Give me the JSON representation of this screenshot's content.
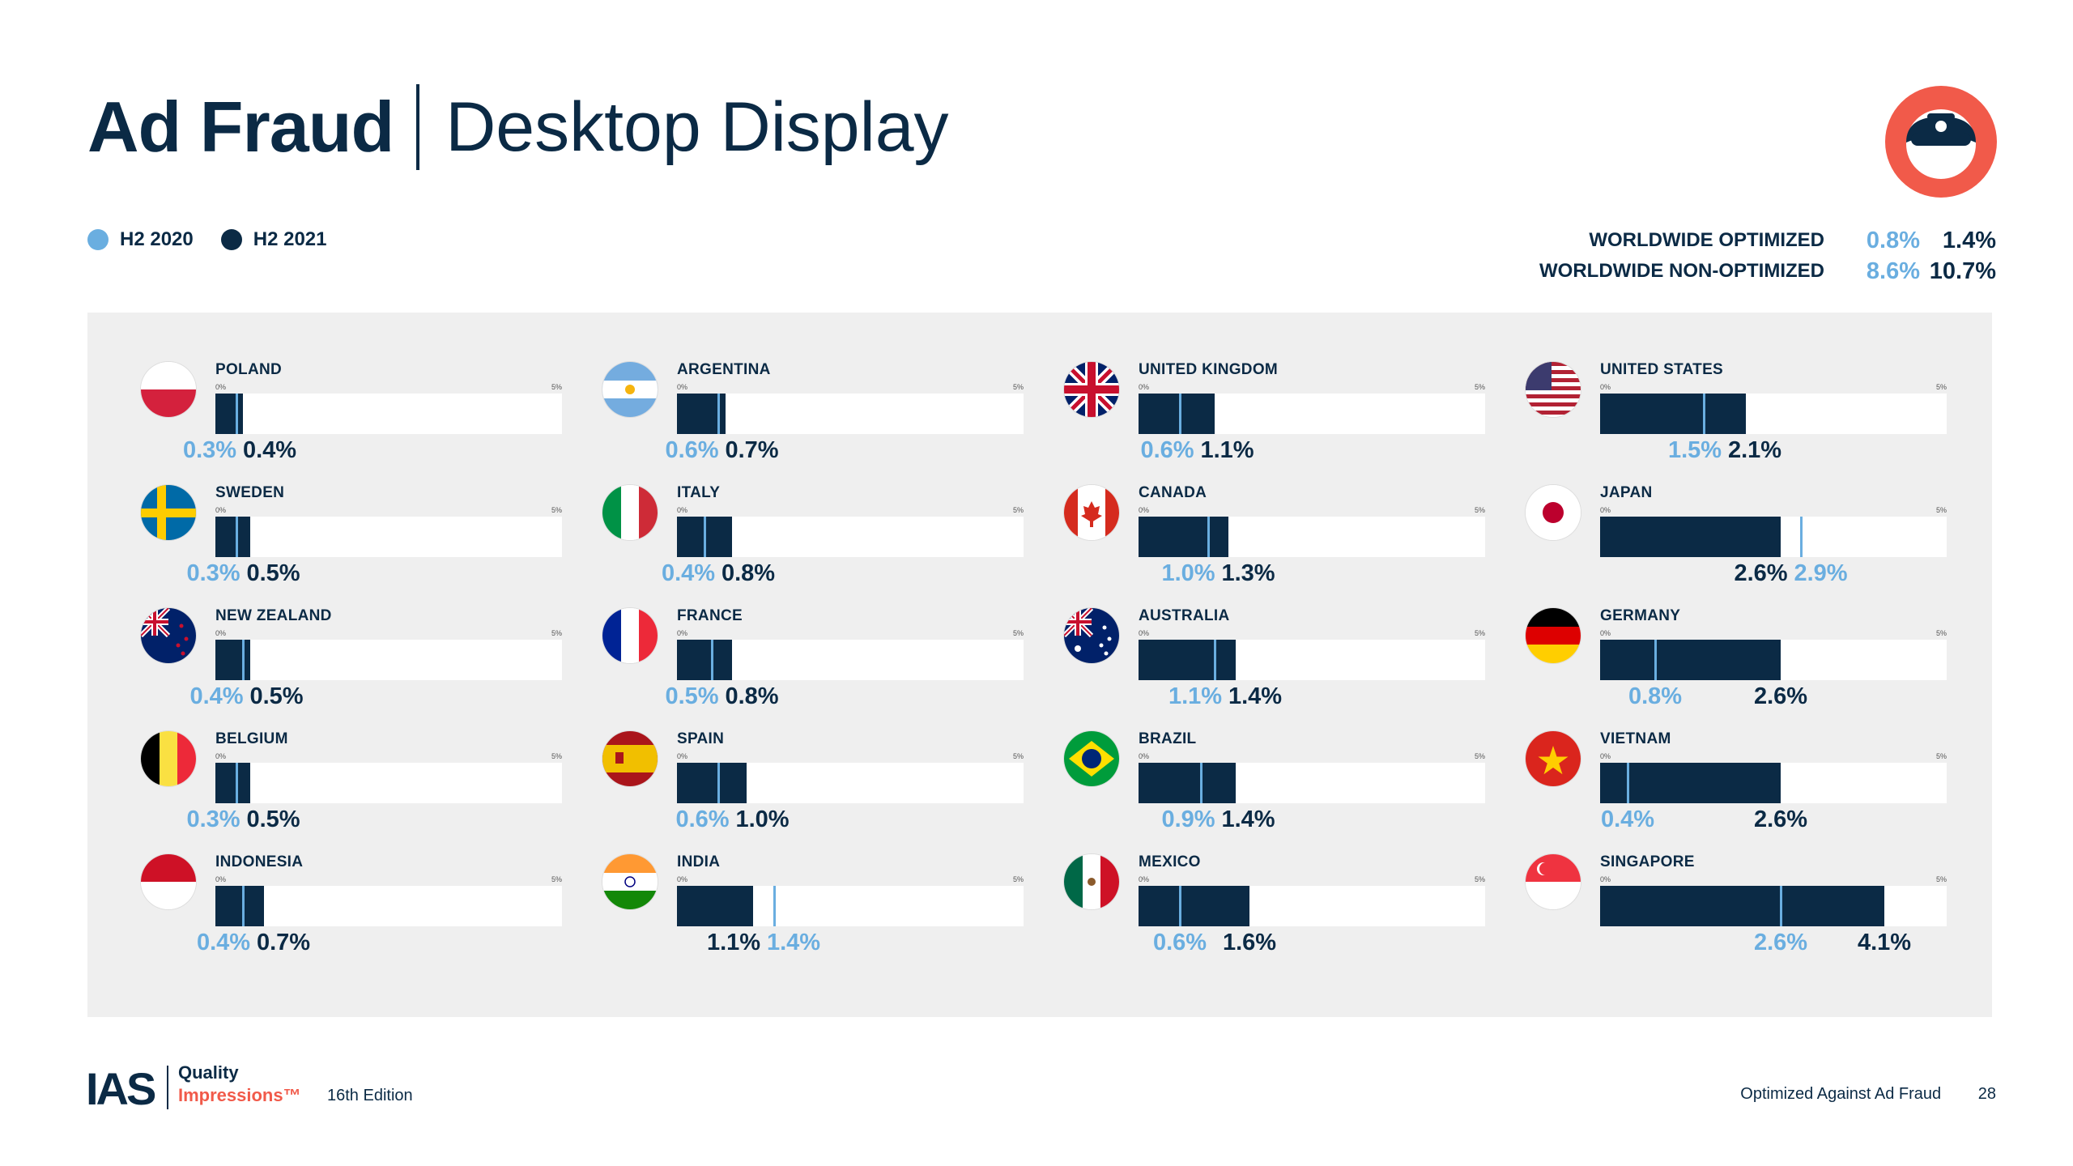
{
  "header": {
    "title_bold": "Ad Fraud",
    "title_light": "Desktop Display"
  },
  "colors": {
    "navy": "#0b2a45",
    "h2_2020": "#6aaee0",
    "h2_2021": "#0b2a45",
    "accent": "#f15a4a",
    "panel": "#efefef"
  },
  "logo_icon": "ninja-mascot-icon",
  "legend": {
    "items": [
      {
        "label": "H2 2020",
        "color": "#6aaee0"
      },
      {
        "label": "H2 2021",
        "color": "#0b2a45"
      }
    ]
  },
  "worldwide": {
    "optimized": {
      "label": "WORLDWIDE OPTIMIZED",
      "h2_2020": "0.8%",
      "h2_2021": "1.4%"
    },
    "non_optimized": {
      "label": "WORLDWIDE NON-OPTIMIZED",
      "h2_2020": "8.6%",
      "h2_2021": "10.7%"
    }
  },
  "chart_data": {
    "type": "bar",
    "title": "Ad Fraud | Desktop Display",
    "xlim": [
      0,
      5
    ],
    "tick_labels": [
      "0%",
      "5%"
    ],
    "series": [
      {
        "name": "H2 2020",
        "role": "marker"
      },
      {
        "name": "H2 2021",
        "role": "bar"
      }
    ],
    "countries": [
      {
        "name": "POLAND",
        "flag": "poland-flag-icon",
        "h2_2020": 0.3,
        "h2_2021": 0.4,
        "h2_2020_label": "0.3%",
        "h2_2021_label": "0.4%"
      },
      {
        "name": "ARGENTINA",
        "flag": "argentina-flag-icon",
        "h2_2020": 0.6,
        "h2_2021": 0.7,
        "h2_2020_label": "0.6%",
        "h2_2021_label": "0.7%"
      },
      {
        "name": "UNITED KINGDOM",
        "flag": "uk-flag-icon",
        "h2_2020": 0.6,
        "h2_2021": 1.1,
        "h2_2020_label": "0.6%",
        "h2_2021_label": "1.1%"
      },
      {
        "name": "UNITED STATES",
        "flag": "us-flag-icon",
        "h2_2020": 1.5,
        "h2_2021": 2.1,
        "h2_2020_label": "1.5%",
        "h2_2021_label": "2.1%"
      },
      {
        "name": "SWEDEN",
        "flag": "sweden-flag-icon",
        "h2_2020": 0.3,
        "h2_2021": 0.5,
        "h2_2020_label": "0.3%",
        "h2_2021_label": "0.5%"
      },
      {
        "name": "ITALY",
        "flag": "italy-flag-icon",
        "h2_2020": 0.4,
        "h2_2021": 0.8,
        "h2_2020_label": "0.4%",
        "h2_2021_label": "0.8%"
      },
      {
        "name": "CANADA",
        "flag": "canada-flag-icon",
        "h2_2020": 1.0,
        "h2_2021": 1.3,
        "h2_2020_label": "1.0%",
        "h2_2021_label": "1.3%"
      },
      {
        "name": "JAPAN",
        "flag": "japan-flag-icon",
        "h2_2020": 2.9,
        "h2_2021": 2.6,
        "h2_2020_label": "2.9%",
        "h2_2021_label": "2.6%"
      },
      {
        "name": "NEW ZEALAND",
        "flag": "new-zealand-flag-icon",
        "h2_2020": 0.4,
        "h2_2021": 0.5,
        "h2_2020_label": "0.4%",
        "h2_2021_label": "0.5%"
      },
      {
        "name": "FRANCE",
        "flag": "france-flag-icon",
        "h2_2020": 0.5,
        "h2_2021": 0.8,
        "h2_2020_label": "0.5%",
        "h2_2021_label": "0.8%"
      },
      {
        "name": "AUSTRALIA",
        "flag": "australia-flag-icon",
        "h2_2020": 1.1,
        "h2_2021": 1.4,
        "h2_2020_label": "1.1%",
        "h2_2021_label": "1.4%"
      },
      {
        "name": "GERMANY",
        "flag": "germany-flag-icon",
        "h2_2020": 0.8,
        "h2_2021": 2.6,
        "h2_2020_label": "0.8%",
        "h2_2021_label": "2.6%"
      },
      {
        "name": "BELGIUM",
        "flag": "belgium-flag-icon",
        "h2_2020": 0.3,
        "h2_2021": 0.5,
        "h2_2020_label": "0.3%",
        "h2_2021_label": "0.5%"
      },
      {
        "name": "SPAIN",
        "flag": "spain-flag-icon",
        "h2_2020": 0.6,
        "h2_2021": 1.0,
        "h2_2020_label": "0.6%",
        "h2_2021_label": "1.0%"
      },
      {
        "name": "BRAZIL",
        "flag": "brazil-flag-icon",
        "h2_2020": 0.9,
        "h2_2021": 1.4,
        "h2_2020_label": "0.9%",
        "h2_2021_label": "1.4%"
      },
      {
        "name": "VIETNAM",
        "flag": "vietnam-flag-icon",
        "h2_2020": 0.4,
        "h2_2021": 2.6,
        "h2_2020_label": "0.4%",
        "h2_2021_label": "2.6%"
      },
      {
        "name": "INDONESIA",
        "flag": "indonesia-flag-icon",
        "h2_2020": 0.4,
        "h2_2021": 0.7,
        "h2_2020_label": "0.4%",
        "h2_2021_label": "0.7%"
      },
      {
        "name": "INDIA",
        "flag": "india-flag-icon",
        "h2_2020": 1.4,
        "h2_2021": 1.1,
        "h2_2020_label": "1.4%",
        "h2_2021_label": "1.1%"
      },
      {
        "name": "MEXICO",
        "flag": "mexico-flag-icon",
        "h2_2020": 0.6,
        "h2_2021": 1.6,
        "h2_2020_label": "0.6%",
        "h2_2021_label": "1.6%"
      },
      {
        "name": "SINGAPORE",
        "flag": "singapore-flag-icon",
        "h2_2020": 2.6,
        "h2_2021": 4.1,
        "h2_2020_label": "2.6%",
        "h2_2021_label": "4.1%"
      }
    ]
  },
  "footer": {
    "brand": "IAS",
    "product_line1": "Quality",
    "product_line2": "Impressions™",
    "edition": "16th Edition",
    "section": "Optimized Against Ad Fraud",
    "page": "28"
  }
}
